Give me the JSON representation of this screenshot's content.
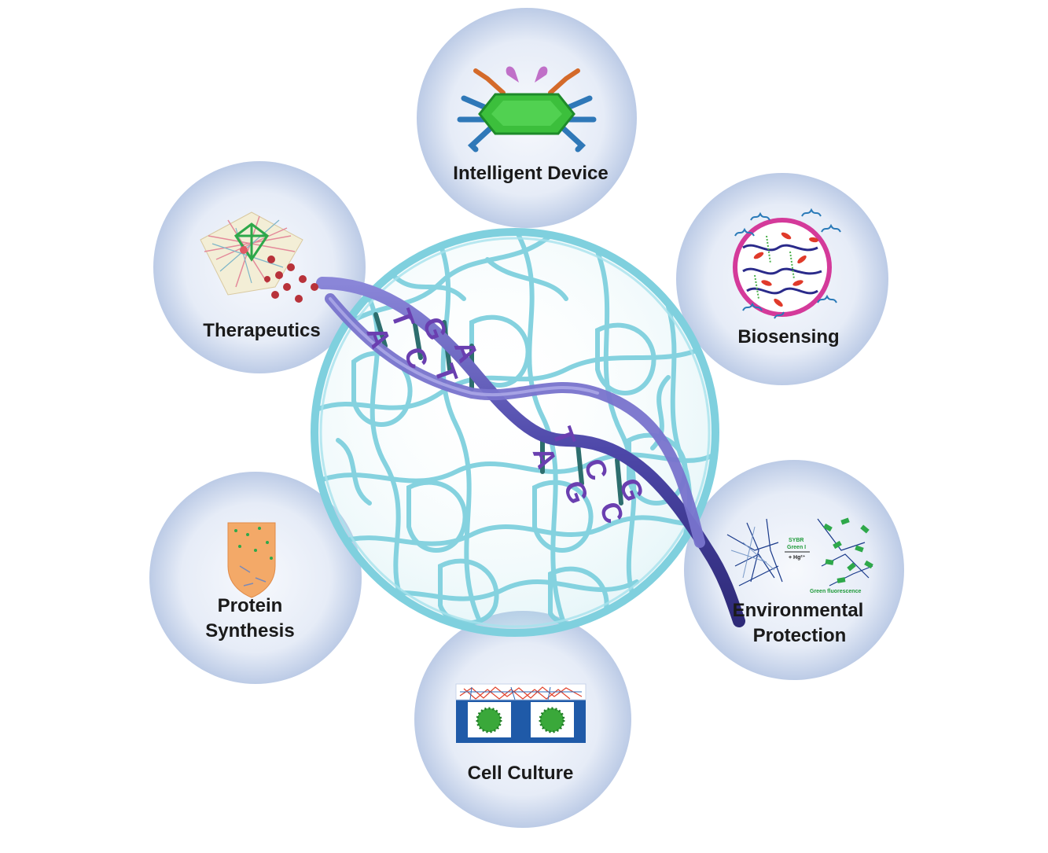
{
  "labels": {
    "intelligent_device": "Intelligent Device",
    "therapeutics": "Therapeutics",
    "biosensing": "Biosensing",
    "protein_synthesis_1": "Protein",
    "protein_synthesis_2": "Synthesis",
    "environmental_protection_1": "Environmental",
    "environmental_protection_2": "Protection",
    "cell_culture": "Cell Culture"
  },
  "dna_bases": {
    "b1": "A",
    "b2": "T",
    "b3": "C",
    "b4": "G",
    "b5": "T",
    "b6": "A",
    "b7": "A",
    "b8": "T",
    "b9": "G",
    "b10": "C",
    "b11": "C",
    "b12": "G"
  },
  "env_inset": {
    "sybr": "SYBR",
    "green_i": "Green I",
    "hg": "+ Hg²⁺",
    "green_fluorescence": "Green fluorescence"
  },
  "colors": {
    "hydrogel_mesh": "#7fd0de",
    "dna_strand": "#5c55b8",
    "base_letters": "#6a3fb0",
    "circle_fill": "#e8eef8",
    "circle_edge": "#b8c8e6"
  }
}
